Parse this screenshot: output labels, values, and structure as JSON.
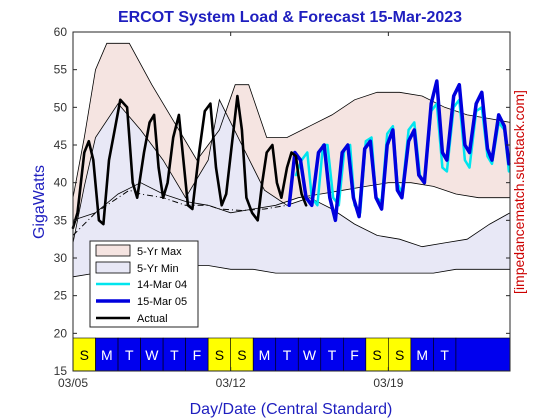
{
  "chart_data": {
    "type": "line",
    "title": "ERCOT System Load & Forecast 15-Mar-2023",
    "xlabel": "Day/Date (Central Standard)",
    "ylabel": "GigaWatts",
    "right_label": "[impedancematch.substack.com]",
    "xlim": [
      0,
      19.4
    ],
    "ylim": [
      15,
      60
    ],
    "yticks": [
      15,
      20,
      25,
      30,
      35,
      40,
      45,
      50,
      55,
      60
    ],
    "xticks": [
      {
        "x": 0,
        "label": "03/05"
      },
      {
        "x": 7,
        "label": "03/12"
      },
      {
        "x": 14,
        "label": "03/19"
      }
    ],
    "days": [
      {
        "label": "S",
        "weekend": true
      },
      {
        "label": "M",
        "weekend": false
      },
      {
        "label": "T",
        "weekend": false
      },
      {
        "label": "W",
        "weekend": false
      },
      {
        "label": "T",
        "weekend": false
      },
      {
        "label": "F",
        "weekend": false
      },
      {
        "label": "S",
        "weekend": true
      },
      {
        "label": "S",
        "weekend": true
      },
      {
        "label": "M",
        "weekend": false
      },
      {
        "label": "T",
        "weekend": false
      },
      {
        "label": "W",
        "weekend": false
      },
      {
        "label": "T",
        "weekend": false
      },
      {
        "label": "F",
        "weekend": false
      },
      {
        "label": "S",
        "weekend": true
      },
      {
        "label": "S",
        "weekend": true
      },
      {
        "label": "M",
        "weekend": false
      },
      {
        "label": "T",
        "weekend": false
      }
    ],
    "legend_position": "bottom-left",
    "grid": false,
    "colors": {
      "max_fill": "#f5e4e1",
      "min_fill": "#e8e8f6",
      "band_line": "#000000",
      "forecast_prev": "#00e5ee",
      "forecast_curr": "#0000dd",
      "actual": "#000000",
      "weekday_bg": "#0000ee",
      "weekend_bg": "#ffff00",
      "title": "#1f1fbf",
      "right_label": "#cc0000"
    },
    "series": [
      {
        "name": "5-Yr Max",
        "kind": "band",
        "upper": [
          [
            0,
            38
          ],
          [
            0.5,
            46
          ],
          [
            1,
            55
          ],
          [
            1.5,
            58.5
          ],
          [
            2.5,
            58.5
          ],
          [
            3.5,
            53
          ],
          [
            4.5,
            48
          ],
          [
            5.5,
            43
          ],
          [
            6.5,
            47
          ],
          [
            7.2,
            53
          ],
          [
            7.8,
            53
          ],
          [
            8.6,
            46
          ],
          [
            9.5,
            46
          ],
          [
            10.5,
            47.5
          ],
          [
            11.5,
            49
          ],
          [
            12.5,
            51
          ],
          [
            13.5,
            52
          ],
          [
            14.5,
            52
          ],
          [
            15.5,
            51.5
          ],
          [
            16.5,
            50
          ],
          [
            17.5,
            49
          ],
          [
            18.5,
            48.5
          ],
          [
            19.4,
            48
          ]
        ],
        "lower": [
          [
            0,
            35
          ],
          [
            1,
            36
          ],
          [
            2,
            38.5
          ],
          [
            3,
            40
          ],
          [
            4,
            38.5
          ],
          [
            5,
            37.5
          ],
          [
            6,
            37
          ],
          [
            7,
            36
          ],
          [
            8,
            36.5
          ],
          [
            9,
            37
          ],
          [
            10,
            38
          ],
          [
            11,
            38.5
          ],
          [
            12,
            39
          ],
          [
            13,
            39.5
          ],
          [
            14,
            40
          ],
          [
            15,
            40
          ],
          [
            16,
            39.5
          ],
          [
            17,
            38.5
          ],
          [
            18,
            38
          ],
          [
            19.4,
            38
          ]
        ],
        "dashdot": [
          [
            0,
            33
          ],
          [
            1,
            36
          ],
          [
            2,
            38
          ],
          [
            2.5,
            39
          ],
          [
            3,
            38.5
          ],
          [
            4,
            38
          ],
          [
            5,
            37
          ],
          [
            6,
            37
          ],
          [
            6.5,
            36.5
          ],
          [
            7.5,
            36.3
          ],
          [
            8.5,
            36.5
          ],
          [
            9.5,
            37
          ]
        ]
      },
      {
        "name": "5-Yr Min",
        "kind": "band",
        "upper": [
          [
            0,
            32
          ],
          [
            0.5,
            39.5
          ],
          [
            1,
            46
          ],
          [
            2,
            50.5
          ],
          [
            3,
            47
          ],
          [
            4,
            43
          ],
          [
            5,
            38
          ],
          [
            6,
            43
          ],
          [
            6.5,
            51
          ],
          [
            7.5,
            45
          ],
          [
            8.5,
            39
          ],
          [
            9.5,
            37
          ],
          [
            10.5,
            38
          ],
          [
            11.5,
            36.5
          ],
          [
            12.5,
            34.5
          ],
          [
            13.5,
            33
          ],
          [
            14.5,
            32.5
          ],
          [
            15.5,
            31.5
          ],
          [
            16.5,
            32
          ],
          [
            17.5,
            32.5
          ],
          [
            18.5,
            34.5
          ],
          [
            19.4,
            36
          ]
        ],
        "lower": [
          [
            0,
            27.5
          ],
          [
            1,
            28
          ],
          [
            2,
            28.5
          ],
          [
            3,
            28.5
          ],
          [
            4,
            28.5
          ],
          [
            5,
            29
          ],
          [
            6,
            29
          ],
          [
            7,
            28.5
          ],
          [
            8,
            28.5
          ],
          [
            9,
            28
          ],
          [
            10,
            28
          ],
          [
            11,
            28
          ],
          [
            12,
            28
          ],
          [
            13,
            28
          ],
          [
            14,
            28
          ],
          [
            15,
            28
          ],
          [
            16,
            28
          ],
          [
            17,
            28.5
          ],
          [
            18,
            28.5
          ],
          [
            19.4,
            28.5
          ]
        ]
      },
      {
        "name": "14-Mar 04",
        "kind": "line",
        "points": [
          [
            9.9,
            41
          ],
          [
            10.15,
            43
          ],
          [
            10.4,
            44
          ],
          [
            10.6,
            38
          ],
          [
            10.85,
            37
          ],
          [
            11.1,
            45
          ],
          [
            11.3,
            45
          ],
          [
            11.55,
            38
          ],
          [
            11.8,
            37
          ],
          [
            12.05,
            44.5
          ],
          [
            12.3,
            45
          ],
          [
            12.5,
            37
          ],
          [
            12.75,
            36
          ],
          [
            13,
            45.5
          ],
          [
            13.25,
            46
          ],
          [
            13.45,
            38
          ],
          [
            13.7,
            37.5
          ],
          [
            13.95,
            46.5
          ],
          [
            14.2,
            47.5
          ],
          [
            14.4,
            40
          ],
          [
            14.6,
            38.5
          ],
          [
            14.9,
            47
          ],
          [
            15.15,
            48
          ],
          [
            15.4,
            41
          ],
          [
            15.6,
            40
          ],
          [
            15.9,
            49.5
          ],
          [
            16.15,
            50.5
          ],
          [
            16.4,
            42
          ],
          [
            16.6,
            41.5
          ],
          [
            16.9,
            50
          ],
          [
            17.15,
            51
          ],
          [
            17.4,
            43
          ],
          [
            17.6,
            42
          ],
          [
            17.9,
            49.5
          ],
          [
            18.15,
            50
          ],
          [
            18.4,
            43.5
          ],
          [
            18.6,
            42.5
          ],
          [
            18.9,
            48
          ],
          [
            19.15,
            47
          ],
          [
            19.35,
            41.5
          ]
        ]
      },
      {
        "name": "15-Mar 05",
        "kind": "line",
        "points": [
          [
            9.6,
            37
          ],
          [
            9.85,
            44
          ],
          [
            10.1,
            43
          ],
          [
            10.35,
            38
          ],
          [
            10.6,
            37
          ],
          [
            10.9,
            44
          ],
          [
            11.15,
            45
          ],
          [
            11.4,
            38
          ],
          [
            11.65,
            35
          ],
          [
            11.95,
            44
          ],
          [
            12.2,
            45
          ],
          [
            12.45,
            38
          ],
          [
            12.7,
            35.5
          ],
          [
            12.95,
            44.5
          ],
          [
            13.2,
            45.5
          ],
          [
            13.45,
            38
          ],
          [
            13.7,
            36.5
          ],
          [
            13.95,
            45
          ],
          [
            14.2,
            47
          ],
          [
            14.4,
            39
          ],
          [
            14.6,
            38
          ],
          [
            14.9,
            45.5
          ],
          [
            15.15,
            47
          ],
          [
            15.35,
            41
          ],
          [
            15.6,
            40
          ],
          [
            15.9,
            50.5
          ],
          [
            16.15,
            53.5
          ],
          [
            16.4,
            44
          ],
          [
            16.6,
            43
          ],
          [
            16.9,
            51.5
          ],
          [
            17.15,
            53
          ],
          [
            17.4,
            45
          ],
          [
            17.6,
            44
          ],
          [
            17.9,
            50.5
          ],
          [
            18.15,
            52
          ],
          [
            18.4,
            44.5
          ],
          [
            18.6,
            43
          ],
          [
            18.9,
            49
          ],
          [
            19.15,
            47.5
          ],
          [
            19.35,
            42.5
          ]
        ]
      },
      {
        "name": "Actual",
        "kind": "line",
        "points": [
          [
            0,
            34
          ],
          [
            0.2,
            36
          ],
          [
            0.5,
            44
          ],
          [
            0.7,
            45.5
          ],
          [
            0.9,
            43
          ],
          [
            1.15,
            35
          ],
          [
            1.35,
            34.5
          ],
          [
            1.6,
            43
          ],
          [
            1.85,
            47
          ],
          [
            2.1,
            51
          ],
          [
            2.4,
            50
          ],
          [
            2.65,
            40
          ],
          [
            2.85,
            38
          ],
          [
            3.15,
            44
          ],
          [
            3.4,
            48
          ],
          [
            3.6,
            49
          ],
          [
            3.8,
            42
          ],
          [
            4.0,
            38
          ],
          [
            4.2,
            40
          ],
          [
            4.45,
            46
          ],
          [
            4.7,
            49
          ],
          [
            4.9,
            43
          ],
          [
            5.1,
            37
          ],
          [
            5.3,
            36.5
          ],
          [
            5.6,
            44
          ],
          [
            5.85,
            49.5
          ],
          [
            6.1,
            50.5
          ],
          [
            6.35,
            42
          ],
          [
            6.6,
            37
          ],
          [
            6.8,
            38.5
          ],
          [
            7.05,
            45
          ],
          [
            7.3,
            51.5
          ],
          [
            7.5,
            47
          ],
          [
            7.7,
            38
          ],
          [
            7.95,
            36
          ],
          [
            8.2,
            35
          ],
          [
            8.4,
            40
          ],
          [
            8.6,
            44
          ],
          [
            8.85,
            45
          ],
          [
            9.05,
            40
          ],
          [
            9.25,
            38
          ],
          [
            9.5,
            42
          ],
          [
            9.7,
            44
          ],
          [
            9.9,
            43.5
          ],
          [
            10.0,
            41
          ],
          [
            10.15,
            38.5
          ],
          [
            10.35,
            37
          ]
        ]
      }
    ]
  }
}
